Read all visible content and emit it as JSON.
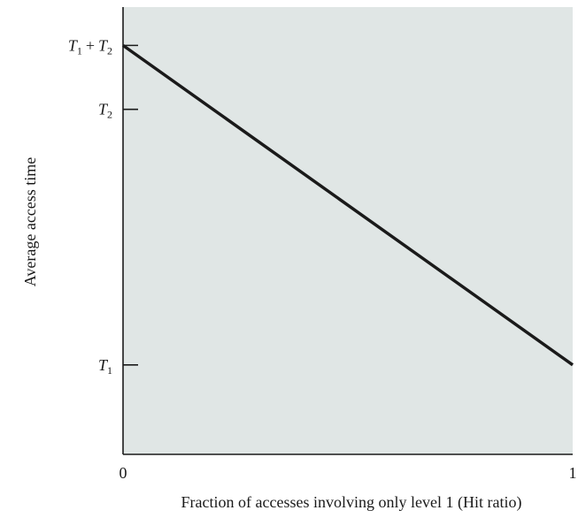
{
  "chart_data": {
    "type": "line",
    "title": "",
    "xlabel": "Fraction of accesses involving only level 1 (Hit ratio)",
    "ylabel": "Average access time",
    "xlim": [
      0,
      1
    ],
    "ylim": [
      0.65,
      2.4
    ],
    "x_ticks": [
      {
        "value": 0,
        "label": "0"
      },
      {
        "value": 1,
        "label": "1"
      }
    ],
    "y_ticks": [
      {
        "value": 1,
        "label": "T1",
        "base": "T",
        "sub": "1"
      },
      {
        "value": 2,
        "label": "T2",
        "base": "T",
        "sub": "2"
      },
      {
        "value": 2.25,
        "label": "T1 + T2",
        "base": "T",
        "sub": "1",
        "plus": "+",
        "base2": "T",
        "sub2": "2"
      }
    ],
    "series": [
      {
        "x": [
          0,
          1
        ],
        "y": [
          2.25,
          1
        ]
      }
    ],
    "grid": false,
    "colors": {
      "plot_background": "#e0e6e5",
      "line": "#1a1a1a",
      "axis": "#1a1a1a"
    }
  }
}
